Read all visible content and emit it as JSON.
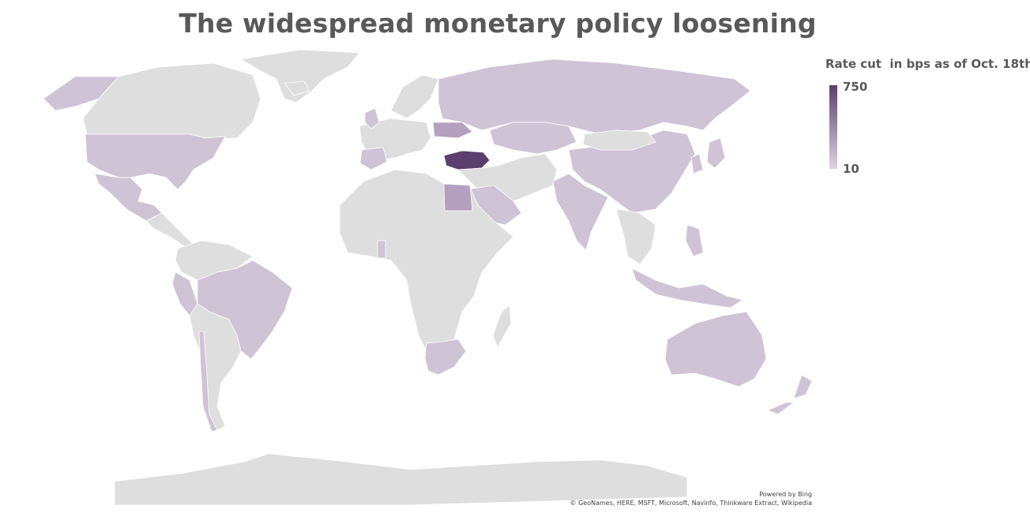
{
  "title": "The widespread monetary policy loosening",
  "legend": {
    "title": "Rate cut  in bps as of Oct. 18th",
    "max_label": "750",
    "min_label": "10",
    "color_high": "#5b3f6e",
    "color_low": "#dcd4e2"
  },
  "attribution": {
    "powered_by": "Powered by Bing",
    "sources": "© GeoNames, HERE, MSFT, Microsoft, Navinfo, Thinkware Extract, Wikipedia"
  },
  "colors": {
    "no_data": "#dedede",
    "light_cut": "#cfc3d6",
    "medium_cut": "#b3a1bf",
    "high_cut": "#5b3f6e"
  },
  "highlighted_regions": [
    {
      "name": "Turkey",
      "level": "high"
    },
    {
      "name": "Egypt",
      "level": "medium"
    },
    {
      "name": "Ukraine",
      "level": "medium"
    },
    {
      "name": "Russia",
      "level": "light"
    },
    {
      "name": "United States",
      "level": "light"
    },
    {
      "name": "Mexico",
      "level": "light"
    },
    {
      "name": "Brazil",
      "level": "light"
    },
    {
      "name": "India",
      "level": "light"
    },
    {
      "name": "China",
      "level": "light"
    },
    {
      "name": "Australia",
      "level": "light"
    }
  ]
}
